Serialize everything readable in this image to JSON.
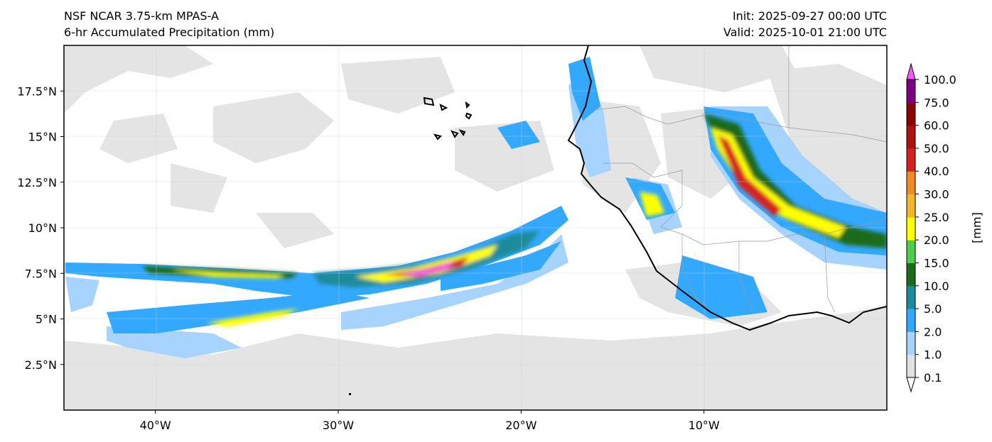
{
  "header": {
    "left_line1": "NSF NCAR 3.75-km MPAS-A",
    "left_line2": "6-hr Accumulated Precipitation (mm)",
    "right_line1": "Init: 2025-09-27 00:00 UTC",
    "right_line2": "Valid: 2025-10-01 21:00 UTC"
  },
  "map": {
    "lon_range": [
      -45,
      0
    ],
    "lat_range": [
      0,
      20
    ],
    "lat_ticks": [
      {
        "value": 17.5,
        "label": "17.5°N"
      },
      {
        "value": 15,
        "label": "15°N"
      },
      {
        "value": 12.5,
        "label": "12.5°N"
      },
      {
        "value": 10,
        "label": "10°N"
      },
      {
        "value": 7.5,
        "label": "7.5°N"
      },
      {
        "value": 5,
        "label": "5°N"
      },
      {
        "value": 2.5,
        "label": "2.5°N"
      }
    ],
    "lon_ticks": [
      {
        "value": -40,
        "label": "40°W"
      },
      {
        "value": -30,
        "label": "30°W"
      },
      {
        "value": -20,
        "label": "20°W"
      },
      {
        "value": -10,
        "label": "10°W"
      }
    ],
    "gridlines": true
  },
  "colorbar": {
    "unit_label": "[mm]",
    "levels": [
      "0.1",
      "1.0",
      "2.0",
      "5.0",
      "10.0",
      "15.0",
      "20.0",
      "25.0",
      "30.0",
      "40.0",
      "50.0",
      "60.0",
      "75.0",
      "100.0"
    ],
    "colors": [
      "#e1e1e1",
      "#a6d3ff",
      "#33a8ff",
      "#1c8c9c",
      "#1c6b1c",
      "#4dcc4d",
      "#ffff00",
      "#f5b52a",
      "#f08c28",
      "#d62020",
      "#b01010",
      "#8b0000",
      "#7a0080",
      "#ff55ff"
    ]
  }
}
